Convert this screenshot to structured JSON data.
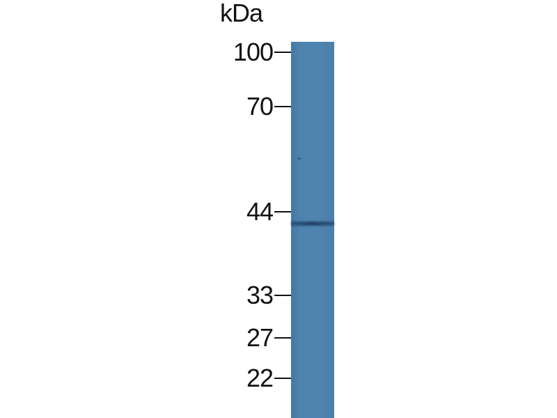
{
  "unit_label": "kDa",
  "markers": [
    {
      "label": "100",
      "kda": 100
    },
    {
      "label": "70",
      "kda": 70
    },
    {
      "label": "44",
      "kda": 44
    },
    {
      "label": "33",
      "kda": 33
    },
    {
      "label": "27",
      "kda": 27
    },
    {
      "label": "22",
      "kda": 22
    }
  ],
  "lane": {
    "color": "#4b80ab",
    "band_kda": 42,
    "band_color": "#22406a"
  }
}
